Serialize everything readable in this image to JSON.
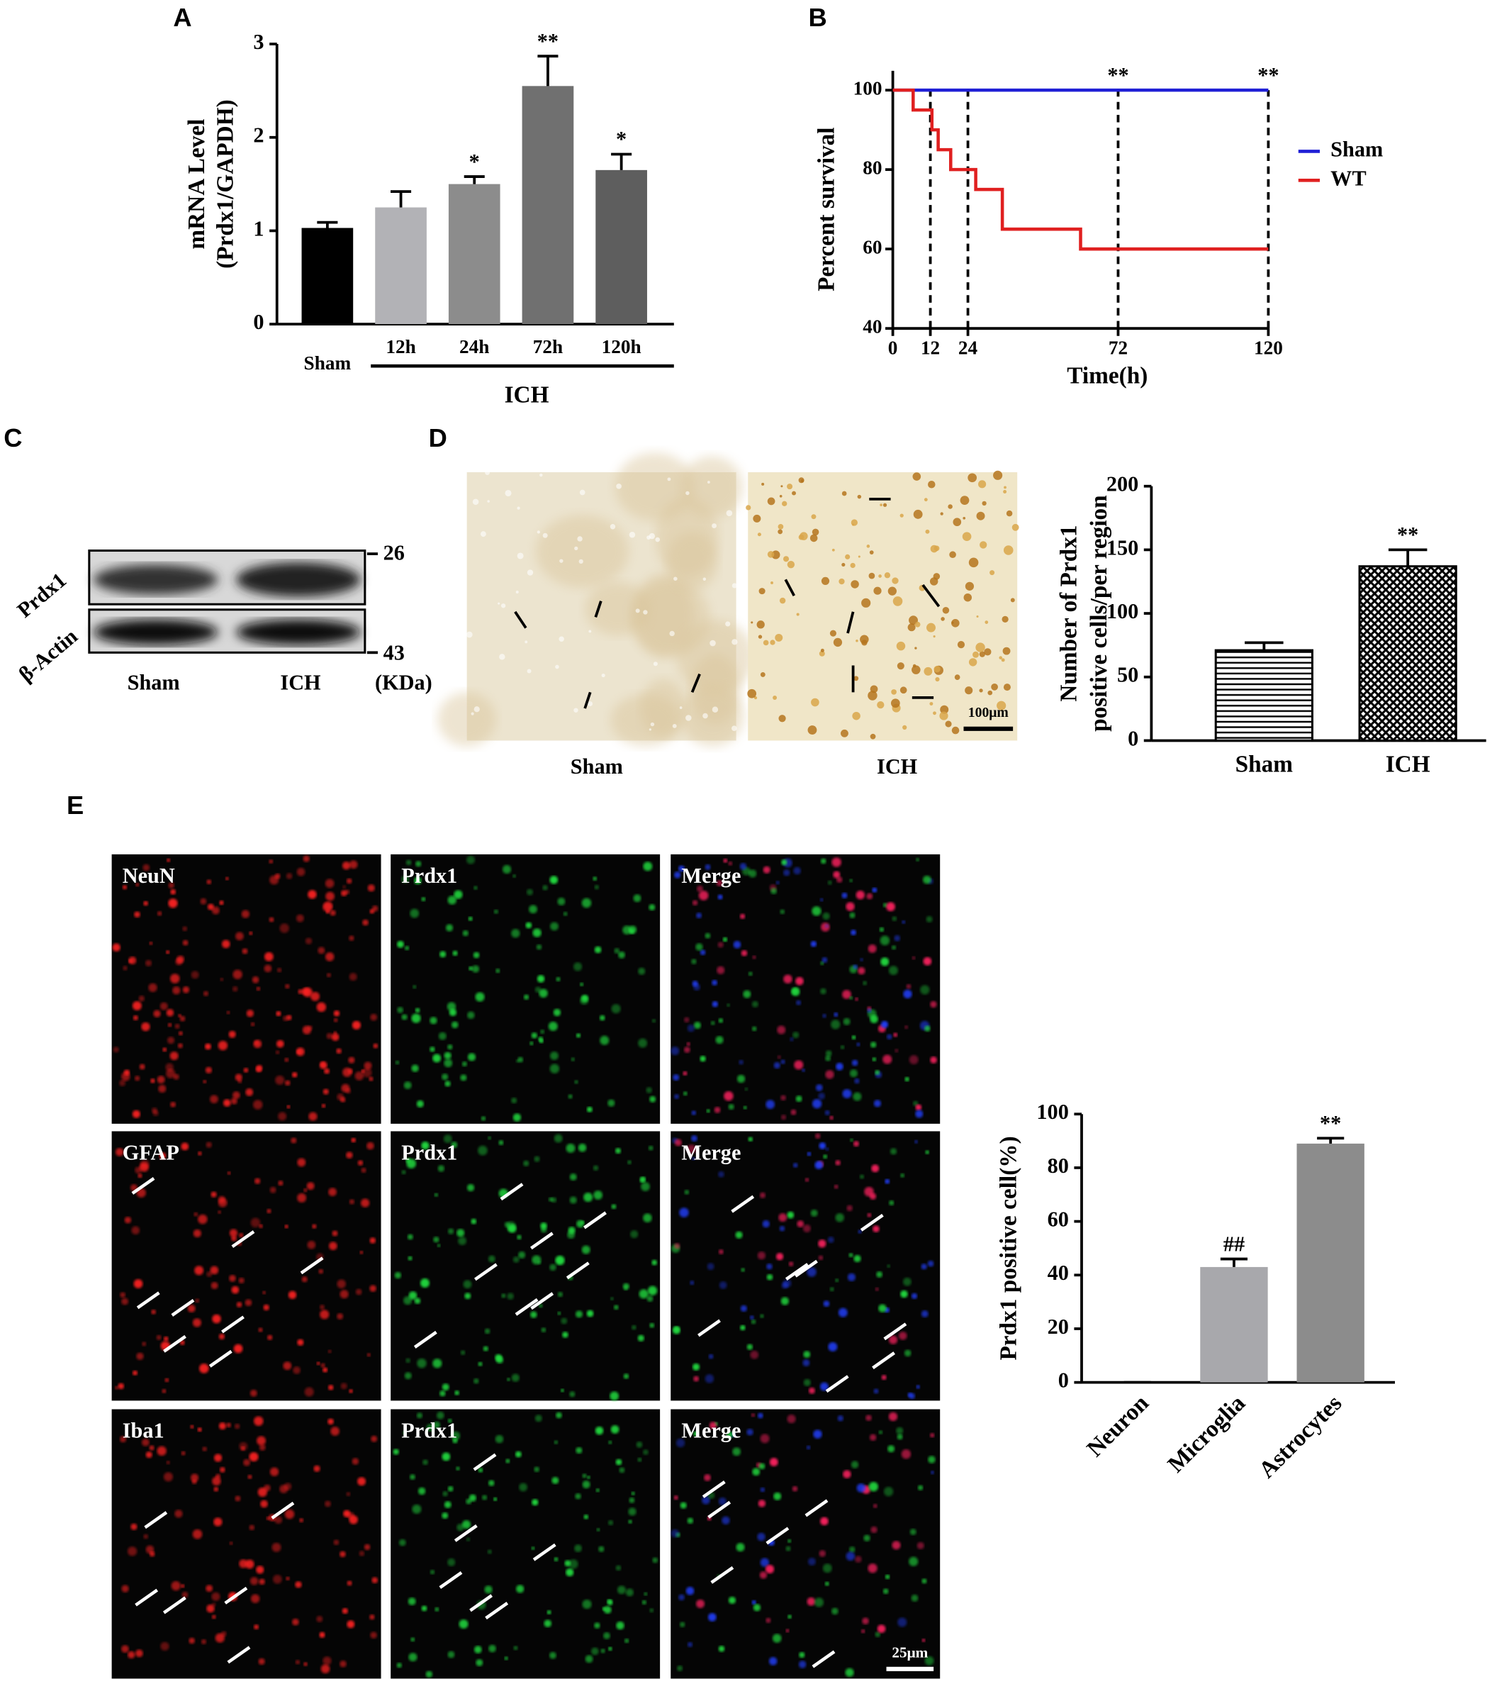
{
  "figure": {
    "panel_labels": [
      "A",
      "B",
      "C",
      "D",
      "E"
    ],
    "blot": {
      "bands": [
        "Prdx1",
        "β-Actin"
      ],
      "lanes": [
        "Sham",
        "ICH"
      ],
      "markers": [
        "26",
        "43"
      ],
      "unit": "(KDa)"
    },
    "ihc": {
      "images": [
        "Sham",
        "ICH"
      ],
      "scale_bar": "100μm"
    },
    "immunofluorescence": {
      "rows": [
        [
          "NeuN",
          "Prdx1",
          "Merge"
        ],
        [
          "GFAP",
          "Prdx1",
          "Merge"
        ],
        [
          "Iba1",
          "Prdx1",
          "Merge"
        ]
      ],
      "scale_bar": "25μm"
    }
  },
  "chart_data": [
    {
      "type": "bar",
      "categories": [
        "Sham",
        "12h",
        "24h",
        "72h",
        "120h"
      ],
      "values": [
        1.03,
        1.25,
        1.5,
        2.55,
        1.65
      ],
      "errors": [
        0.06,
        0.17,
        0.08,
        0.32,
        0.17
      ],
      "significance": [
        null,
        null,
        "*",
        "**",
        "*"
      ],
      "colors": [
        "#000000",
        "#b2b2b6",
        "#8c8c8c",
        "#707070",
        "#5e5e5e"
      ],
      "ylabel": [
        "mRNA Level",
        "(Prdx1/GAPDH)"
      ],
      "group_label": "ICH",
      "ylim": [
        0,
        3
      ],
      "yticks": [
        0,
        1,
        2,
        3
      ]
    },
    {
      "type": "line",
      "xlabel": "Time(h)",
      "ylabel": "Percent survival",
      "xlim": [
        0,
        120
      ],
      "xticks": [
        0,
        12,
        24,
        72,
        120
      ],
      "ylim": [
        40,
        100
      ],
      "yticks": [
        40,
        60,
        80,
        100
      ],
      "reference_lines": [
        12,
        24,
        72,
        120
      ],
      "annotations": [
        {
          "x": 72,
          "text": "**"
        },
        {
          "x": 120,
          "text": "**"
        }
      ],
      "legend": "right",
      "series": [
        {
          "name": "Sham",
          "color": "#1f1fd6",
          "x": [
            0,
            120
          ],
          "values": [
            100,
            100
          ]
        },
        {
          "name": "WT",
          "color": "#e02020",
          "x": [
            0,
            6.5,
            6.5,
            12.5,
            12.5,
            14.5,
            14.5,
            18.5,
            18.5,
            26.5,
            26.5,
            35,
            35,
            60,
            60,
            120
          ],
          "values": [
            100,
            100,
            95,
            95,
            90,
            90,
            85,
            85,
            80,
            80,
            75,
            75,
            65,
            65,
            60,
            60
          ]
        }
      ]
    },
    {
      "type": "bar",
      "categories": [
        "Sham",
        "ICH"
      ],
      "values": [
        71,
        137
      ],
      "errors": [
        6,
        13
      ],
      "significance": [
        null,
        "**"
      ],
      "patterns": [
        "horizontal-lines",
        "crosshatch"
      ],
      "ylabel": [
        "Number of Prdx1",
        "positive cells/per region"
      ],
      "ylim": [
        0,
        200
      ],
      "yticks": [
        0,
        50,
        100,
        150,
        200
      ]
    },
    {
      "type": "bar",
      "categories": [
        "Neuron",
        "Microglia",
        "Astrocytes"
      ],
      "values": [
        0,
        43,
        89
      ],
      "errors": [
        0,
        3,
        2
      ],
      "significance": [
        null,
        "##",
        "**"
      ],
      "colors": [
        "#a8a8ac",
        "#a8a8ac",
        "#8c8c8c"
      ],
      "ylabel": [
        "Prdx1 positive cell(%)"
      ],
      "ylim": [
        0,
        100
      ],
      "yticks": [
        0,
        20,
        40,
        60,
        80,
        100
      ]
    }
  ]
}
